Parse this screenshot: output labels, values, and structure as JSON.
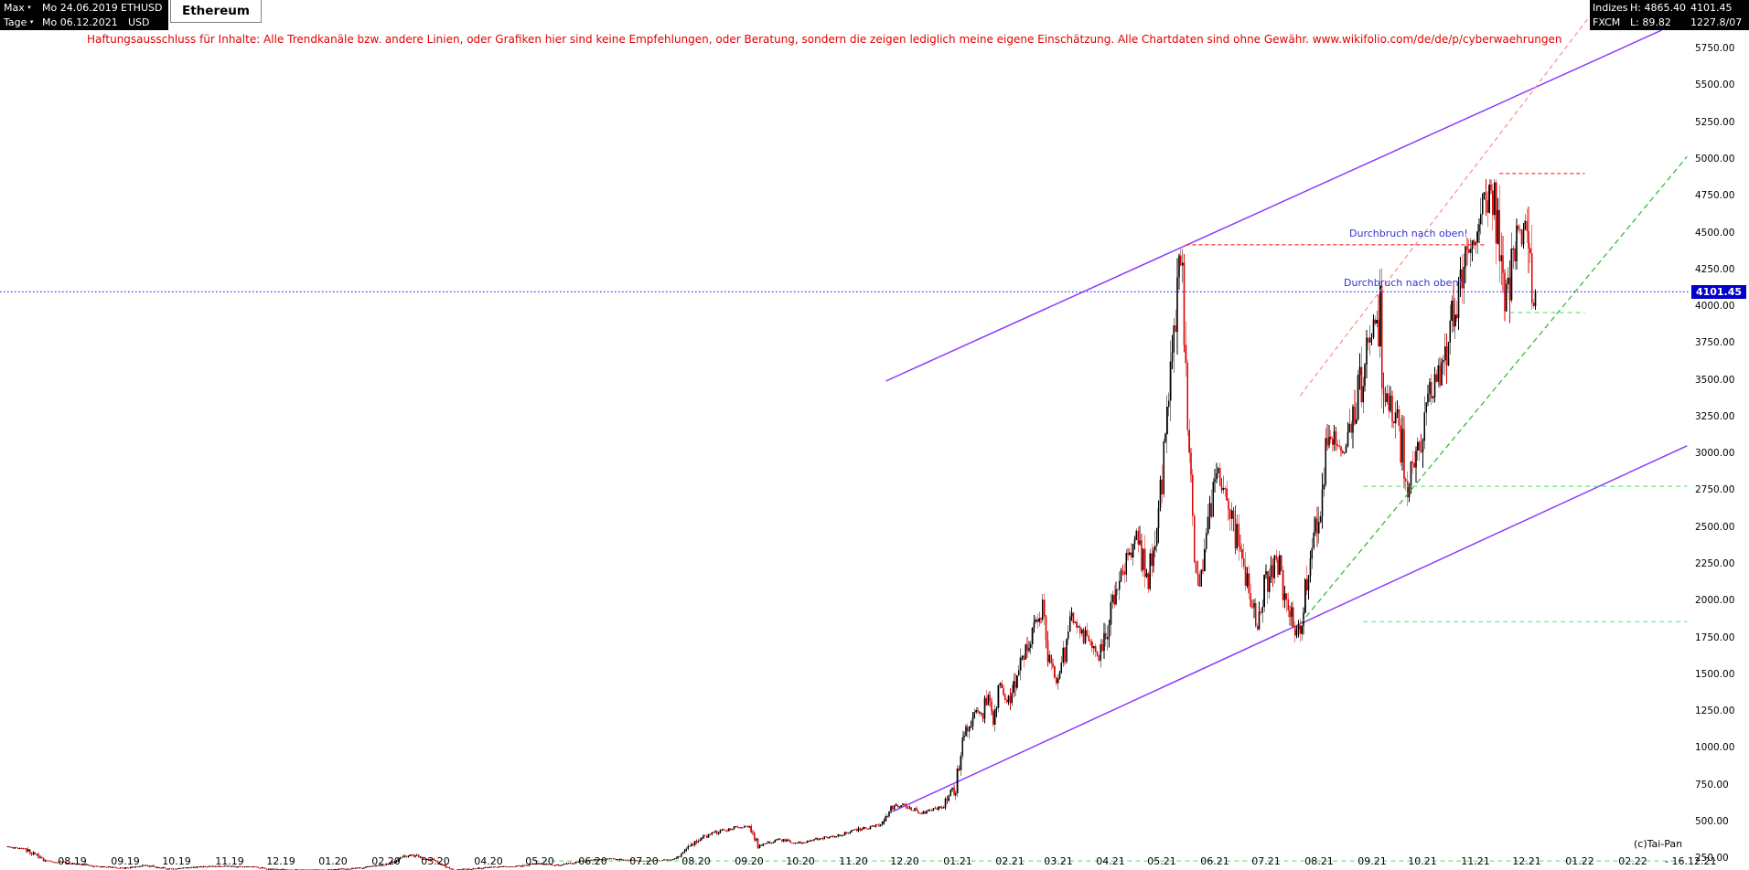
{
  "header": {
    "range_mode": "Max",
    "timeframe": "Tage",
    "date_from": "Mo 24.06.2019",
    "date_to": "Mo 06.12.2021",
    "symbol": "ETHUSD",
    "currency": "USD",
    "instrument": "Ethereum",
    "feed_label_top": "Indizes",
    "feed_value_top": "H: 4865.40",
    "feed_label_bottom": "FXCM",
    "feed_value_bottom": "L: 89.82",
    "quote_top": "4101.45",
    "quote_bottom": "1227.8/07"
  },
  "disclaimer": "Haftungsausschluss für Inhalte: Alle Trendkanäle bzw. andere Linien, oder Grafiken hier sind keine Empfehlungen, oder Beratung, sondern die zeigen lediglich meine eigene Einschätzung. Alle Chartdaten sind ohne Gewähr.  www.wikifolio.com/de/de/p/cyberwaehrungen",
  "footer": {
    "copyright": "(c)Tai-Pan"
  },
  "chart_data": {
    "type": "candlestick",
    "title": "Ethereum",
    "symbol": "ETHUSD",
    "currency": "USD",
    "timeframe_label": "Tage",
    "range_label": "Max",
    "date_from": "Mo 24.06.2019",
    "date_to": "Mo 06.12.2021",
    "last_price": 4101.45,
    "period_high": 4865.4,
    "period_low": 89.82,
    "up_color": "#000000",
    "down_color": "#dd0000",
    "y_axis": {
      "max": 5750,
      "min": 250,
      "step": 250,
      "grid": false,
      "labels": [
        "5750.00",
        "5500.00",
        "5250.00",
        "5000.00",
        "4750.00",
        "4500.00",
        "4250.00",
        "4000.00",
        "3750.00",
        "3500.00",
        "3250.00",
        "3000.00",
        "2750.00",
        "2500.00",
        "2250.00",
        "2000.00",
        "1750.00",
        "1500.00",
        "1250.00",
        "1000.00",
        "750.00",
        "500.00",
        "250.00"
      ]
    },
    "x_axis": {
      "start_date": "24.06.2019",
      "end_label": "- 16.12.21",
      "ticks": [
        {
          "label": "08.19",
          "day": 38
        },
        {
          "label": "09.19",
          "day": 69
        },
        {
          "label": "10.19",
          "day": 99
        },
        {
          "label": "11.19",
          "day": 130
        },
        {
          "label": "12.19",
          "day": 160
        },
        {
          "label": "01.20",
          "day": 191
        },
        {
          "label": "02.20",
          "day": 222
        },
        {
          "label": "03.20",
          "day": 251
        },
        {
          "label": "04.20",
          "day": 282
        },
        {
          "label": "05.20",
          "day": 312
        },
        {
          "label": "06.20",
          "day": 343
        },
        {
          "label": "07.20",
          "day": 373
        },
        {
          "label": "08.20",
          "day": 404
        },
        {
          "label": "09.20",
          "day": 435
        },
        {
          "label": "10.20",
          "day": 465
        },
        {
          "label": "11.20",
          "day": 496
        },
        {
          "label": "12.20",
          "day": 526
        },
        {
          "label": "01.21",
          "day": 557
        },
        {
          "label": "02.21",
          "day": 588
        },
        {
          "label": "03.21",
          "day": 616
        },
        {
          "label": "04.21",
          "day": 647
        },
        {
          "label": "05.21",
          "day": 677
        },
        {
          "label": "06.21",
          "day": 708
        },
        {
          "label": "07.21",
          "day": 738
        },
        {
          "label": "08.21",
          "day": 769
        },
        {
          "label": "09.21",
          "day": 800
        },
        {
          "label": "10.21",
          "day": 830
        },
        {
          "label": "11.21",
          "day": 861
        },
        {
          "label": "12.21",
          "day": 891
        },
        {
          "label": "01.22",
          "day": 922
        },
        {
          "label": "02.22",
          "day": 953
        }
      ]
    },
    "days_total": 896,
    "price_anchors_day_price": [
      [
        0,
        330
      ],
      [
        10,
        315
      ],
      [
        21,
        240
      ],
      [
        36,
        220
      ],
      [
        52,
        200
      ],
      [
        68,
        185
      ],
      [
        80,
        205
      ],
      [
        94,
        180
      ],
      [
        113,
        195
      ],
      [
        124,
        200
      ],
      [
        145,
        195
      ],
      [
        154,
        180
      ],
      [
        170,
        175
      ],
      [
        187,
        175
      ],
      [
        204,
        185
      ],
      [
        224,
        215
      ],
      [
        236,
        280
      ],
      [
        250,
        235
      ],
      [
        262,
        175
      ],
      [
        270,
        180
      ],
      [
        287,
        195
      ],
      [
        300,
        200
      ],
      [
        311,
        220
      ],
      [
        321,
        205
      ],
      [
        342,
        240
      ],
      [
        352,
        250
      ],
      [
        372,
        235
      ],
      [
        392,
        245
      ],
      [
        398,
        315
      ],
      [
        407,
        390
      ],
      [
        417,
        435
      ],
      [
        435,
        480
      ],
      [
        440,
        340
      ],
      [
        452,
        385
      ],
      [
        462,
        355
      ],
      [
        476,
        385
      ],
      [
        487,
        410
      ],
      [
        501,
        455
      ],
      [
        513,
        480
      ],
      [
        519,
        600
      ],
      [
        525,
        615
      ],
      [
        535,
        560
      ],
      [
        548,
        600
      ],
      [
        556,
        735
      ],
      [
        559,
        980
      ],
      [
        566,
        1260
      ],
      [
        572,
        1235
      ],
      [
        576,
        1385
      ],
      [
        578,
        1115
      ],
      [
        581,
        1420
      ],
      [
        587,
        1315
      ],
      [
        594,
        1615
      ],
      [
        607,
        1935
      ],
      [
        610,
        1585
      ],
      [
        615,
        1425
      ],
      [
        624,
        1870
      ],
      [
        630,
        1795
      ],
      [
        640,
        1595
      ],
      [
        648,
        2010
      ],
      [
        662,
        2430
      ],
      [
        669,
        2110
      ],
      [
        678,
        2950
      ],
      [
        684,
        3900
      ],
      [
        688,
        4360
      ],
      [
        690,
        3900
      ],
      [
        695,
        2450
      ],
      [
        699,
        2105
      ],
      [
        707,
        2710
      ],
      [
        710,
        2860
      ],
      [
        718,
        2550
      ],
      [
        725,
        2235
      ],
      [
        733,
        1835
      ],
      [
        738,
        2120
      ],
      [
        744,
        2320
      ],
      [
        750,
        2000
      ],
      [
        757,
        1790
      ],
      [
        763,
        2230
      ],
      [
        768,
        2530
      ],
      [
        775,
        3150
      ],
      [
        785,
        3010
      ],
      [
        791,
        3320
      ],
      [
        798,
        3790
      ],
      [
        805,
        3930
      ],
      [
        806,
        3430
      ],
      [
        812,
        3330
      ],
      [
        819,
        2980
      ],
      [
        821,
        2740
      ],
      [
        825,
        2930
      ],
      [
        833,
        3380
      ],
      [
        841,
        3560
      ],
      [
        850,
        4060
      ],
      [
        858,
        4410
      ],
      [
        862,
        4520
      ],
      [
        866,
        4700
      ],
      [
        870,
        4860
      ],
      [
        874,
        4550
      ],
      [
        878,
        3990
      ],
      [
        882,
        4280
      ],
      [
        885,
        4520
      ],
      [
        889,
        4450
      ],
      [
        892,
        4590
      ],
      [
        894,
        4100
      ],
      [
        896,
        4101.45
      ]
    ],
    "overlays": {
      "current_price_line": {
        "price": 4101.45,
        "style": "dotted",
        "color": "#0000ee"
      },
      "trend_lines": [
        {
          "name": "violet-channel-upper-line",
          "color": "#8c3bff",
          "dash": "none",
          "width": 1.5,
          "layer": "behind",
          "points_day_price": [
            [
              515,
              3495
            ],
            [
              970,
              5878
            ]
          ]
        },
        {
          "name": "violet-channel-lower-line",
          "color": "#8c3bff",
          "dash": "none",
          "width": 1.5,
          "layer": "behind",
          "points_day_price": [
            [
              519,
              570
            ],
            [
              985,
              3055
            ]
          ]
        },
        {
          "name": "green-support-trendline",
          "color": "#2db52d",
          "dash": "6 4",
          "width": 1.2,
          "layer": "front",
          "points_day_price": [
            [
              758,
              1845
            ],
            [
              985,
              5020
            ]
          ]
        },
        {
          "name": "red-resistance-trendline",
          "color": "#ff8a8a",
          "dash": "5 4",
          "width": 1.2,
          "layer": "front",
          "points_day_price": [
            [
              758,
              3395
            ],
            [
              931,
              6020
            ]
          ]
        },
        {
          "name": "red-ath-resistance-4900",
          "color": "#ff2a2a",
          "dash": "4 3",
          "width": 1.2,
          "layer": "front",
          "points_day_price": [
            [
              875,
              4905
            ],
            [
              925,
              4905
            ]
          ]
        },
        {
          "name": "red-may-high-resistance-4420",
          "color": "#ff2a2a",
          "dash": "4 3",
          "width": 1.2,
          "layer": "front",
          "points_day_price": [
            [
              691,
              4420
            ],
            [
              867,
              4420
            ]
          ]
        },
        {
          "name": "green-support-3960",
          "color": "#63e884",
          "dash": "5 4",
          "width": 1.2,
          "layer": "front",
          "points_day_price": [
            [
              881,
              3960
            ],
            [
              925,
              3960
            ]
          ]
        },
        {
          "name": "green-support-2780",
          "color": "#63e884",
          "dash": "5 4",
          "width": 1.2,
          "layer": "front",
          "points_day_price": [
            [
              795,
              2780
            ],
            [
              985,
              2780
            ]
          ]
        },
        {
          "name": "green-support-1860",
          "color": "#63e884",
          "dash": "5 4",
          "width": 1.2,
          "layer": "front",
          "points_day_price": [
            [
              795,
              1860
            ],
            [
              985,
              1860
            ]
          ]
        },
        {
          "name": "green-support-235",
          "color": "#63e884",
          "dash": "5 4",
          "width": 1.2,
          "layer": "front",
          "points_day_price": [
            [
              309,
              235
            ],
            [
              985,
              235
            ]
          ]
        }
      ]
    },
    "annotations": [
      {
        "text": "Durchbruch nach oben!",
        "color": "#3333cc",
        "near_price": 4420
      },
      {
        "text": "Durchbruch nach oben!",
        "color": "#3333cc",
        "near_price": 4101.45
      }
    ]
  }
}
